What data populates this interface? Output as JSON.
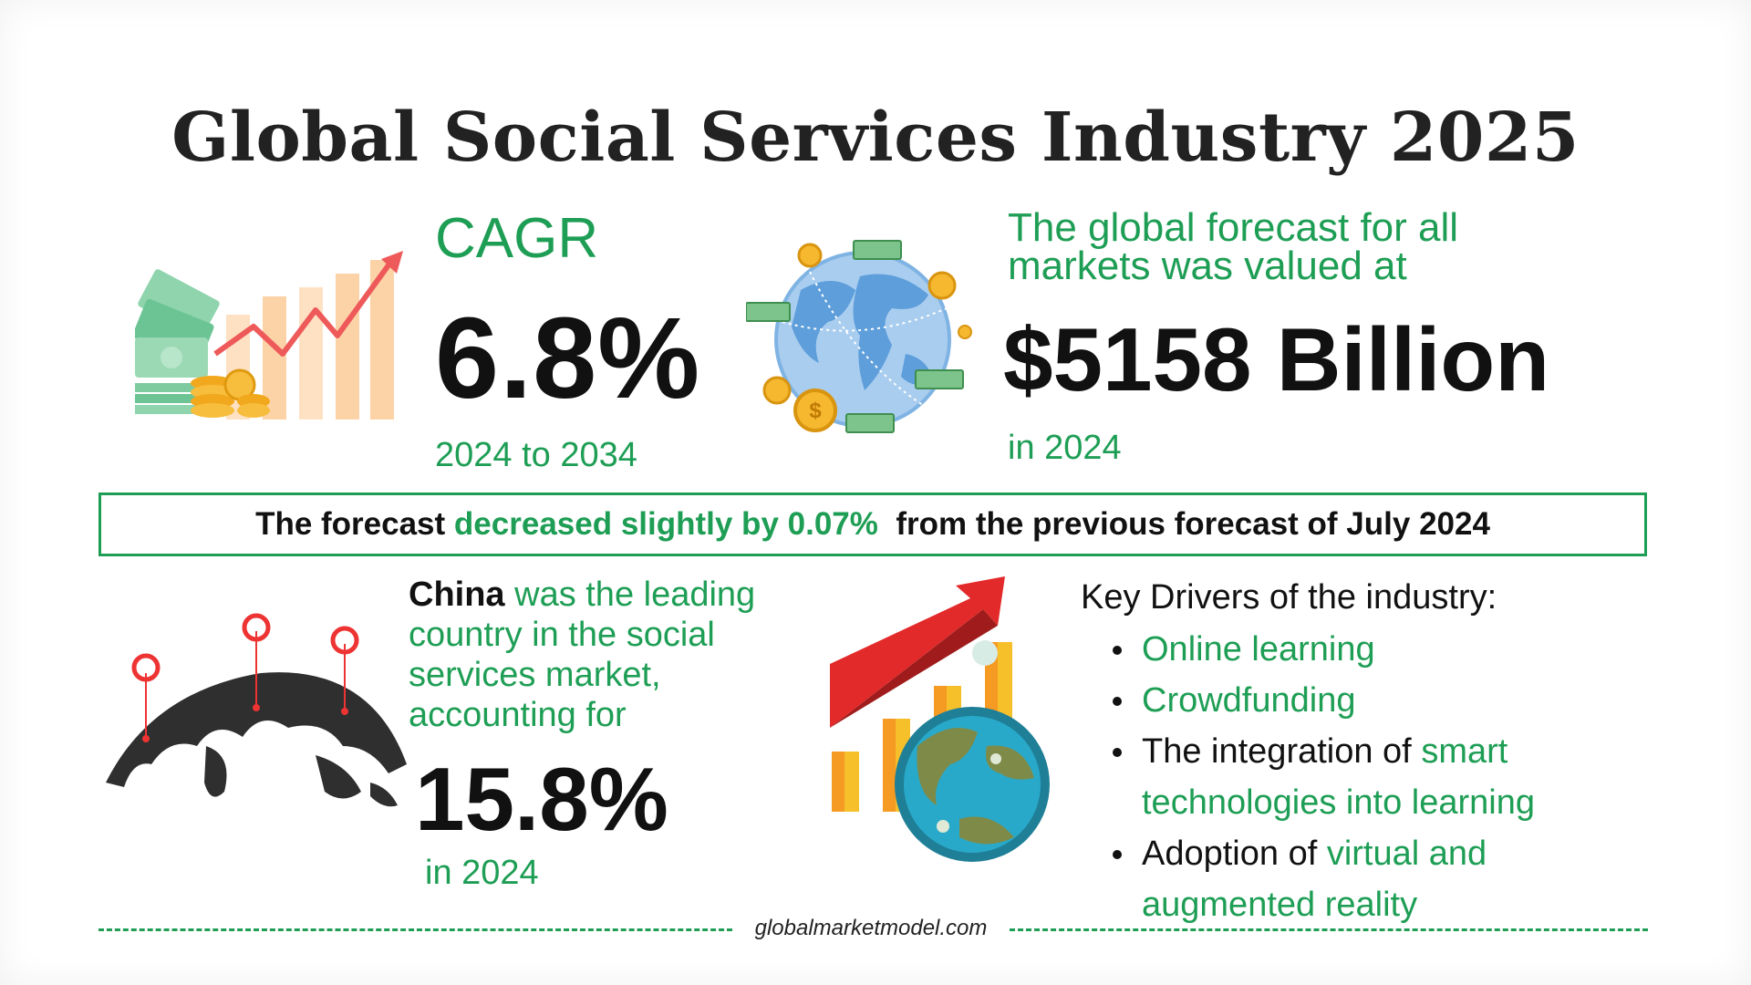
{
  "title": "Global Social Services Industry 2025",
  "cagr": {
    "label": "CAGR",
    "value": "6.8%",
    "range": "2024 to 2034"
  },
  "forecast": {
    "line1": "The global forecast for all",
    "line2": "markets was valued at",
    "value": "$5158 Billion",
    "year": "in 2024"
  },
  "banner": {
    "part1": "The forecast ",
    "highlight": "decreased slightly by 0.07%",
    "part2": "  from the previous forecast of July 2024"
  },
  "leading_country": {
    "country": "China",
    "text": " was the leading country in the social services market, accounting for",
    "value": "15.8%",
    "year": "in 2024"
  },
  "drivers": {
    "title": "Key Drivers of the industry:",
    "items": [
      {
        "text": "Online learning"
      },
      {
        "text": "Crowdfunding"
      },
      {
        "prefix": "The integration of ",
        "text": "smart",
        "continuation": "technologies into learning"
      },
      {
        "prefix": "Adoption of ",
        "text": "virtual and",
        "continuation": "augmented reality"
      }
    ]
  },
  "footer": {
    "site": "globalmarketmodel.com"
  },
  "colors": {
    "accent_green": "#1e9e55",
    "text_dark": "#111111",
    "arrow_red": "#e63232",
    "bar_orange": "#f5a623"
  },
  "icons": [
    "money-growth-chart-icon",
    "globe-money-icon",
    "world-map-pins-icon",
    "globe-growth-chart-icon"
  ]
}
